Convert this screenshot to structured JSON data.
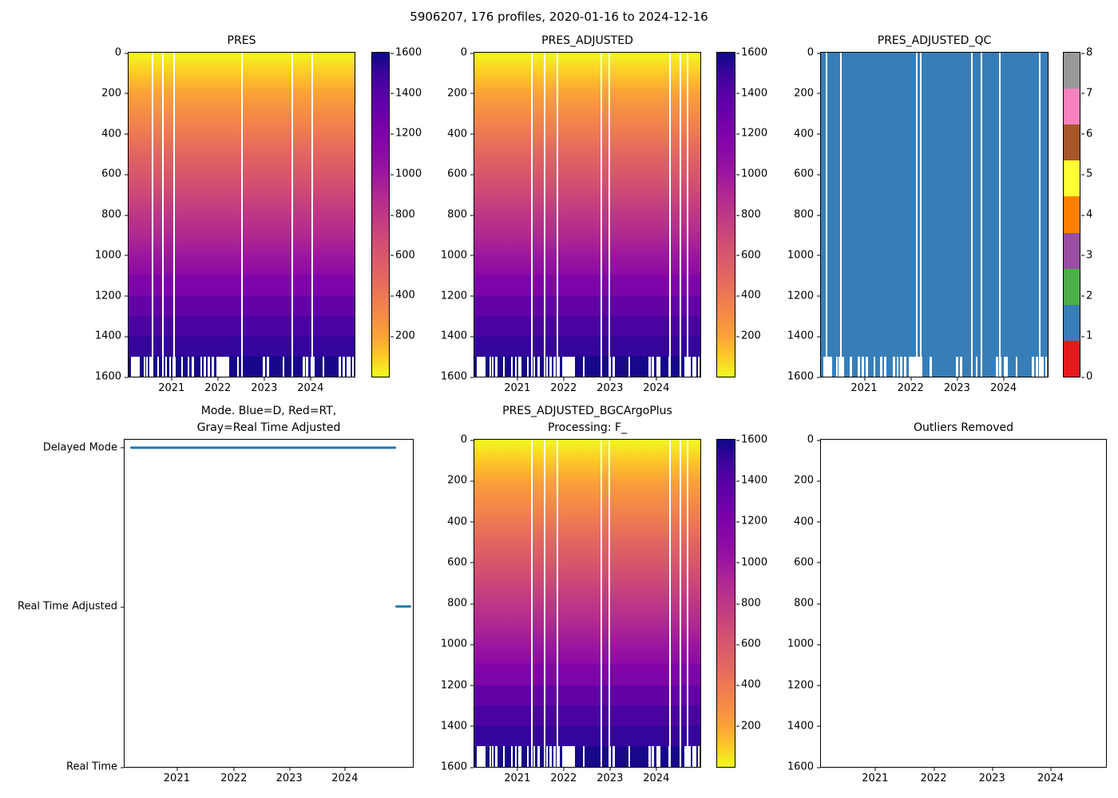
{
  "figure": {
    "suptitle": "5906207, 176 profiles, 2020-01-16 to 2024-12-16",
    "platform_id": "5906207",
    "n_profiles": "176",
    "date_start": "2020-01-16",
    "date_end": "2024-12-16"
  },
  "subplots": {
    "pres": {
      "title": "PRES"
    },
    "pres_adjusted": {
      "title": "PRES_ADJUSTED"
    },
    "qc": {
      "title": "PRES_ADJUSTED_QC"
    },
    "mode": {
      "title": "Mode. Blue=D, Red=RT,\nGray=Real Time Adjusted",
      "level_labels": [
        "Delayed Mode",
        "Real Time Adjusted",
        "Real Time"
      ]
    },
    "bgc": {
      "title": "PRES_ADJUSTED_BGCArgoPlus\nProcessing: F_"
    },
    "outliers": {
      "title": "Outliers Removed"
    }
  },
  "axes": {
    "depth_ticks": [
      "0",
      "200",
      "400",
      "600",
      "800",
      "1000",
      "1200",
      "1400",
      "1600"
    ],
    "year_ticks": [
      "2021",
      "2022",
      "2023",
      "2024"
    ]
  },
  "colorbars": {
    "pressure_ticks_top_to_bottom": [
      "1600",
      "1400",
      "1200",
      "1000",
      "800",
      "600",
      "400",
      "200"
    ],
    "qc_ticks_top_to_bottom": [
      "8",
      "7",
      "6",
      "5",
      "4",
      "3",
      "2",
      "1",
      "0"
    ]
  },
  "palette": {
    "plasma_low_to_high": [
      [
        0,
        "#f0f921"
      ],
      [
        6.25,
        "#fdca26"
      ],
      [
        12.5,
        "#fba238"
      ],
      [
        18.75,
        "#f58c46"
      ],
      [
        25,
        "#ed7953"
      ],
      [
        31.25,
        "#e26561"
      ],
      [
        37.5,
        "#d8576b"
      ],
      [
        43.75,
        "#cc4778"
      ],
      [
        50,
        "#bd3786"
      ],
      [
        56.25,
        "#b02991"
      ],
      [
        62.5,
        "#9c179e"
      ],
      [
        68.75,
        "#8b0aa5"
      ],
      [
        75,
        "#7e03a8"
      ],
      [
        81.25,
        "#6a00a8"
      ],
      [
        87.5,
        "#5601a4"
      ],
      [
        93.75,
        "#3b049a"
      ],
      [
        100,
        "#0d0887"
      ]
    ],
    "depth_bands": [
      [
        68.75,
        75,
        "#7e03a8"
      ],
      [
        75,
        81.25,
        "#6201a6"
      ],
      [
        81.25,
        87.5,
        "#4a03a0"
      ],
      [
        87.5,
        93.75,
        "#34049b"
      ],
      [
        93.75,
        100,
        "#17078a"
      ]
    ],
    "qc_colors_0_to_8": [
      "#e41a1c",
      "#377eb8",
      "#4daf4a",
      "#984ea3",
      "#ff7f00",
      "#ffff33",
      "#a65628",
      "#f781bf",
      "#999999"
    ],
    "qc_fill": "#377eb8",
    "mode_line": "#1f77b4"
  },
  "profile_gaps": {
    "column_gaps_pct": {
      "pres": [
        10.5,
        15.1,
        20.0,
        50.2,
        72.5,
        81.3
      ],
      "pres_adjusted": [
        25.3,
        31.2,
        36.8,
        56.1,
        59.6,
        86.7,
        91.2,
        94.3
      ],
      "qc": [
        2.4,
        8.7,
        42.3,
        44.0,
        66.4,
        70.6,
        78.7,
        96.5
      ],
      "bgc": [
        25.3,
        31.2,
        36.8,
        56.1,
        59.6,
        86.7,
        91.2,
        94.3
      ]
    },
    "deep_gap_segments_pct": [
      [
        1.1,
        5.0
      ],
      [
        6.6,
        7.4
      ],
      [
        7.9,
        8.6
      ],
      [
        9.3,
        10.1
      ],
      [
        12.8,
        13.6
      ],
      [
        16.3,
        17.1
      ],
      [
        18.0,
        18.9
      ],
      [
        19.6,
        20.7
      ],
      [
        23.2,
        23.9
      ],
      [
        26.2,
        27.0
      ],
      [
        27.8,
        28.9
      ],
      [
        31.8,
        32.6
      ],
      [
        33.3,
        34.2
      ],
      [
        35.0,
        35.9
      ],
      [
        36.6,
        37.7
      ],
      [
        38.8,
        44.7
      ],
      [
        48.0,
        48.8
      ],
      [
        59.4,
        60.4
      ],
      [
        61.2,
        62.3
      ],
      [
        68.3,
        69.0
      ],
      [
        77.0,
        78.0
      ],
      [
        78.6,
        79.6
      ],
      [
        80.5,
        82.3
      ],
      [
        86.0,
        86.6
      ],
      [
        92.8,
        94.0
      ],
      [
        94.8,
        95.8
      ],
      [
        96.4,
        98.1
      ],
      [
        99.0,
        99.6
      ]
    ]
  },
  "chart_data": [
    {
      "id": "pres",
      "type": "heatmap",
      "title": "PRES",
      "x_axis": {
        "ticks": [
          2021,
          2022,
          2023,
          2024
        ],
        "range": [
          "2020-01-16",
          "2024-12-16"
        ]
      },
      "y_axis": {
        "ticks": [
          0,
          200,
          400,
          600,
          800,
          1000,
          1200,
          1400,
          1600
        ],
        "range": [
          0,
          1600
        ],
        "inverted": true
      },
      "colorbar": {
        "ticks": [
          200,
          400,
          600,
          800,
          1000,
          1200,
          1400,
          1600
        ],
        "range": [
          0,
          1600
        ],
        "colormap": "plasma reversed (yellow=low, navy=high)"
      },
      "values": "pressure equals vertical level: ~0 dbar at surface smoothly increasing to 1600 dbar at bottom; discrete 100-dbar bands below 1100; most profiles stop at 1500, a subset reaches 1600",
      "missing_profile_columns_pct": [
        10.5,
        15.1,
        20.0,
        50.2,
        72.5,
        81.3
      ]
    },
    {
      "id": "pres_adjusted",
      "type": "heatmap",
      "title": "PRES_ADJUSTED",
      "x_axis": {
        "ticks": [
          2021,
          2022,
          2023,
          2024
        ],
        "range": [
          "2020-01-16",
          "2024-12-16"
        ]
      },
      "y_axis": {
        "ticks": [
          0,
          200,
          400,
          600,
          800,
          1000,
          1200,
          1400,
          1600
        ],
        "range": [
          0,
          1600
        ],
        "inverted": true
      },
      "colorbar": {
        "ticks": [
          200,
          400,
          600,
          800,
          1000,
          1200,
          1400,
          1600
        ],
        "range": [
          0,
          1600
        ],
        "colormap": "plasma reversed (yellow=low, navy=high)"
      },
      "values": "same gradient as PRES: 0→1600 dbar top to bottom with banded steps below 1100 and ragged coverage 1500-1600",
      "missing_profile_columns_pct": [
        25.3,
        31.2,
        36.8,
        56.1,
        59.6,
        86.7,
        91.2,
        94.3
      ]
    },
    {
      "id": "qc",
      "type": "heatmap",
      "title": "PRES_ADJUSTED_QC",
      "x_axis": {
        "ticks": [
          2021,
          2022,
          2023,
          2024
        ],
        "range": [
          "2020-01-16",
          "2024-12-16"
        ]
      },
      "y_axis": {
        "ticks": [
          0,
          200,
          400,
          600,
          800,
          1000,
          1200,
          1400,
          1600
        ],
        "range": [
          0,
          1600
        ],
        "inverted": true
      },
      "colorbar": {
        "ticks": [
          0,
          1,
          2,
          3,
          4,
          5,
          6,
          7,
          8
        ],
        "range": [
          0,
          8
        ],
        "colormap": "Set1 discrete, 9 classes"
      },
      "values": "QC flag = 1 (blue) everywhere data exists; white columns are missing profiles; below 1500 coverage is intermittent",
      "dominant_value": 1,
      "missing_profile_columns_pct": [
        2.4,
        8.7,
        42.3,
        44.0,
        66.4,
        70.6,
        78.7,
        96.5
      ]
    },
    {
      "id": "mode",
      "type": "line",
      "title": "Mode. Blue=D, Red=RT,\nGray=Real Time Adjusted",
      "x_axis": {
        "ticks": [
          2021,
          2022,
          2023,
          2024
        ],
        "range": [
          "2020-01-16",
          "~2025"
        ]
      },
      "y_categories": [
        "Real Time",
        "Real Time Adjusted",
        "Delayed Mode"
      ],
      "level_positions_pct": {
        "Delayed Mode": 2.4,
        "Real Time Adjusted": 51.0,
        "Real Time": 100
      },
      "series": [
        {
          "name": "processing mode",
          "color": "#1f77b4",
          "segments": [
            {
              "y": "Delayed Mode",
              "x_start_pct": 2.0,
              "x_end_pct": 94.2,
              "meaning": "nearly all profiles are Delayed Mode (blue)"
            },
            {
              "y": "Real Time Adjusted",
              "x_start_pct": 94.0,
              "x_end_pct": 99.4,
              "meaning": "latest profiles are Real Time Adjusted"
            }
          ]
        }
      ]
    },
    {
      "id": "bgc",
      "type": "heatmap",
      "title": "PRES_ADJUSTED_BGCArgoPlus\nProcessing: F_",
      "x_axis": {
        "ticks": [
          2021,
          2022,
          2023,
          2024
        ],
        "range": [
          "2020-01-16",
          "2024-12-16"
        ]
      },
      "y_axis": {
        "ticks": [
          0,
          200,
          400,
          600,
          800,
          1000,
          1200,
          1400,
          1600
        ],
        "range": [
          0,
          1600
        ],
        "inverted": true
      },
      "colorbar": {
        "ticks": [
          200,
          400,
          600,
          800,
          1000,
          1200,
          1400,
          1600
        ],
        "range": [
          0,
          1600
        ],
        "colormap": "plasma reversed (yellow=low, navy=high)"
      },
      "values": "identical appearance to PRES_ADJUSTED: 0→1600 dbar gradient, banded below 1100, ragged 1500-1600 strip",
      "missing_profile_columns_pct": [
        25.3,
        31.2,
        36.8,
        56.1,
        59.6,
        86.7,
        91.2,
        94.3
      ]
    },
    {
      "id": "outliers",
      "type": "scatter",
      "title": "Outliers Removed",
      "x_axis": {
        "ticks": [
          2021,
          2022,
          2023,
          2024
        ],
        "range": [
          "2020-01-16",
          "2024-12-16"
        ]
      },
      "y_axis": {
        "ticks": [
          0,
          200,
          400,
          600,
          800,
          1000,
          1200,
          1400,
          1600
        ],
        "range": [
          0,
          1600
        ],
        "inverted": true
      },
      "points": []
    }
  ]
}
